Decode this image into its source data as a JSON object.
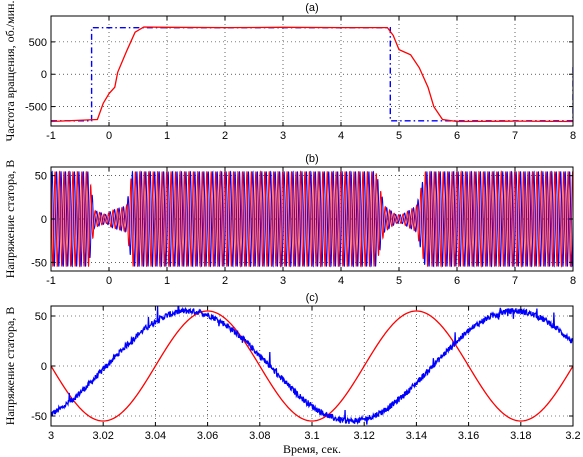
{
  "chart_data": [
    {
      "type": "line",
      "title": "(a)",
      "ylabel": "Частота вращения, об./мин.",
      "xlabel": "",
      "xlim": [
        -1,
        8
      ],
      "ylim": [
        -800,
        900
      ],
      "xticks": [
        -1,
        0,
        1,
        2,
        3,
        4,
        5,
        6,
        7,
        8
      ],
      "yticks": [
        -500,
        0,
        500
      ],
      "grid": true,
      "series": [
        {
          "color": "#0000ff",
          "style": "dashdot",
          "x": [
            -1,
            -0.3,
            -0.3,
            4.85,
            4.85,
            8,
            8
          ],
          "y": [
            -720,
            -720,
            720,
            720,
            -720,
            -720,
            150
          ]
        },
        {
          "color": "#ff0000",
          "style": "solid",
          "x": [
            -1,
            -0.2,
            -0.1,
            0.0,
            0.1,
            0.15,
            0.3,
            0.45,
            0.6,
            1.0,
            2.0,
            3.0,
            4.0,
            4.8,
            4.9,
            5.0,
            5.2,
            5.35,
            5.5,
            5.6,
            5.75,
            6.0,
            7.0,
            8.0
          ],
          "y": [
            -730,
            -700,
            -450,
            -300,
            -200,
            30,
            350,
            650,
            730,
            725,
            720,
            725,
            720,
            720,
            600,
            380,
            300,
            100,
            -200,
            -500,
            -700,
            -730,
            -725,
            -730
          ]
        }
      ]
    },
    {
      "type": "line",
      "title": "(b)",
      "ylabel": "Напряжение статора, В",
      "xlabel": "",
      "xlim": [
        -1,
        8
      ],
      "ylim": [
        -60,
        60
      ],
      "xticks": [
        -1,
        0,
        1,
        2,
        3,
        4,
        5,
        6,
        7,
        8
      ],
      "yticks": [
        -50,
        0,
        50
      ],
      "grid": true,
      "envelope": {
        "t": [
          -1,
          -0.35,
          -0.25,
          -0.05,
          0.05,
          0.3,
          0.4,
          4.6,
          4.75,
          4.95,
          5.05,
          5.3,
          5.45,
          8
        ],
        "amplitude": [
          55,
          55,
          10,
          5,
          10,
          15,
          55,
          55,
          15,
          5,
          5,
          15,
          55,
          55
        ]
      },
      "series": [
        {
          "color": "#0000ff",
          "amplitude": 55,
          "cycles_per_second": 13
        },
        {
          "color": "#ff0000",
          "amplitude": 55,
          "cycles_per_second": 13
        }
      ]
    },
    {
      "type": "line",
      "title": "(c)",
      "ylabel": "Напряжение статора, В",
      "xlabel": "Время, сек.",
      "xlim": [
        3,
        3.2
      ],
      "ylim": [
        -60,
        60
      ],
      "xticks": [
        3,
        3.02,
        3.04,
        3.06,
        3.08,
        3.1,
        3.12,
        3.14,
        3.16,
        3.18,
        3.2
      ],
      "yticks": [
        -50,
        0,
        50
      ],
      "grid": true,
      "series": [
        {
          "color": "#ff0000",
          "amplitude": 55,
          "period": 0.08,
          "peak_x": 3.06,
          "noisy": false
        },
        {
          "color": "#0000ff",
          "amplitude": 55,
          "period": 0.125,
          "peak_x": 3.0525,
          "noisy": true
        }
      ]
    }
  ]
}
